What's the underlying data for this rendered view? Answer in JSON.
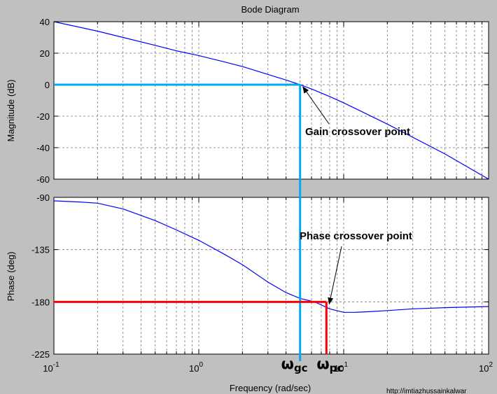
{
  "chart_data": {
    "type": "line",
    "title": "Bode Diagram",
    "xlabel": "Frequency (rad/sec)",
    "xscale": "log",
    "xlim": [
      0.1,
      100
    ],
    "x_ticks": [
      0.1,
      1,
      10,
      100
    ],
    "x_tick_labels": [
      {
        "base": "10",
        "exp": "-1"
      },
      {
        "base": "10",
        "exp": "0"
      },
      {
        "base": "10",
        "exp": "1"
      },
      {
        "base": "10",
        "exp": "2"
      }
    ],
    "grid": true,
    "panels": [
      {
        "id": "magnitude",
        "ylabel": "Magnitude (dB)",
        "ylim": [
          -60,
          40
        ],
        "yticks": [
          40,
          20,
          0,
          -20,
          -40,
          -60
        ],
        "line_color": "#0000ff",
        "x": [
          0.1,
          0.2,
          0.3,
          0.5,
          0.7,
          1.0,
          1.5,
          2.0,
          3.0,
          4.0,
          5.0,
          6.3,
          8.0,
          10,
          20,
          50,
          100
        ],
        "y": [
          40,
          34,
          30,
          25,
          21.5,
          18.5,
          14.5,
          11.5,
          6.5,
          3,
          0,
          -3.5,
          -7.5,
          -11.5,
          -25,
          -44,
          -60
        ]
      },
      {
        "id": "phase",
        "ylabel": "Phase (deg)",
        "ylim": [
          -225,
          -90
        ],
        "yticks": [
          -90,
          -135,
          -180,
          -225
        ],
        "line_color": "#0000ff",
        "x": [
          0.1,
          0.15,
          0.2,
          0.3,
          0.5,
          0.7,
          1.0,
          1.5,
          2.0,
          3.0,
          4.0,
          5.0,
          6.3,
          8.0,
          10,
          12,
          15,
          20,
          30,
          50,
          100
        ],
        "y": [
          -93,
          -94,
          -95,
          -100,
          -110,
          -118,
          -127,
          -139,
          -148,
          -163,
          -172,
          -177,
          -180,
          -186,
          -189,
          -189,
          -188.5,
          -187.5,
          -186,
          -185,
          -184
        ]
      }
    ],
    "reference_lines": [
      {
        "panel": "magnitude",
        "kind": "horizontal",
        "y": 0,
        "x_from": 0.1,
        "x_to": 5.0,
        "color": "#00aaee"
      },
      {
        "panel": "both",
        "kind": "vertical",
        "x": 5.0,
        "color": "#00aaee"
      },
      {
        "panel": "phase",
        "kind": "horizontal",
        "y": -180,
        "x_from": 0.1,
        "x_to": 7.6,
        "color": "#ff0000"
      },
      {
        "panel": "phase",
        "kind": "vertical",
        "x": 7.6,
        "y_from": -180,
        "y_to": -225,
        "color": "#ff0000"
      }
    ],
    "annotations": [
      {
        "id": "gain-crossover",
        "text": "Gain crossover point",
        "panel": "magnitude",
        "target_x": 5.0,
        "target_y": 0
      },
      {
        "id": "phase-crossover",
        "text": "Phase crossover point",
        "panel": "phase",
        "target_x": 7.6,
        "target_y": -180
      }
    ],
    "freq_markers": [
      {
        "symbol": "ω",
        "sub": "gc",
        "x": 5.0
      },
      {
        "symbol": "ω",
        "sub": "pc",
        "x": 7.6
      }
    ]
  },
  "watermark": "http://imtiazhussainkalwar"
}
